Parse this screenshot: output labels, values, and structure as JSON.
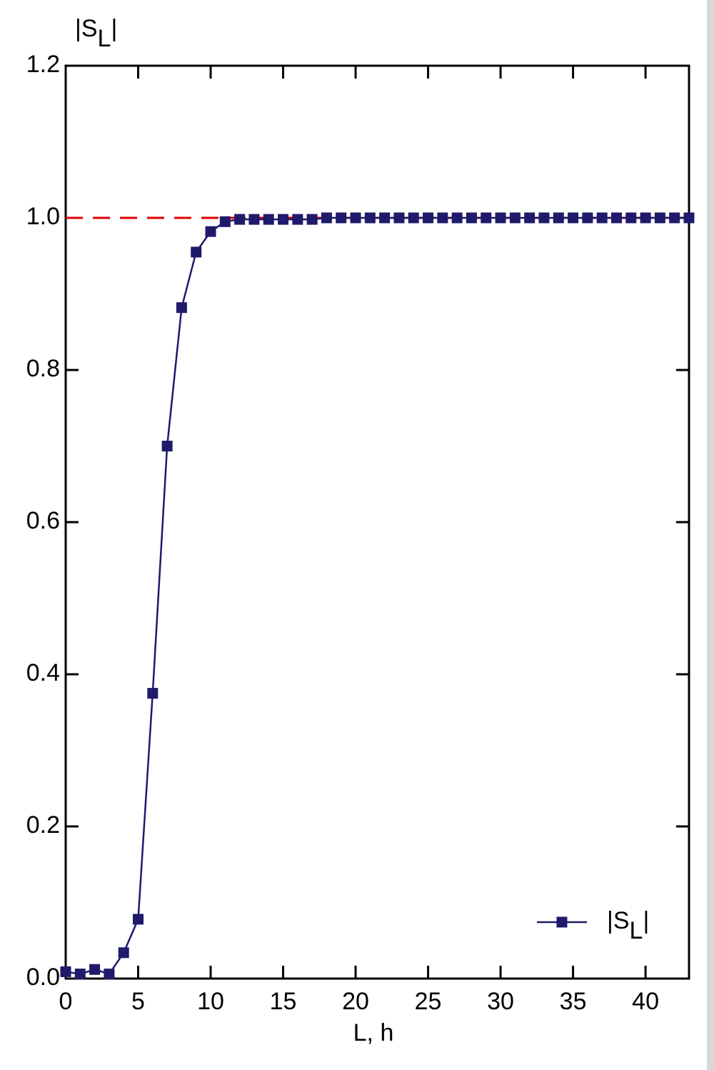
{
  "chart_data": {
    "type": "line",
    "y_label": "|SL|",
    "x_label": "L, h",
    "x": [
      0,
      1,
      2,
      3,
      4,
      5,
      6,
      7,
      8,
      9,
      10,
      11,
      12,
      13,
      14,
      15,
      16,
      17,
      18,
      19,
      20,
      21,
      22,
      23,
      24,
      25,
      26,
      27,
      28,
      29,
      30,
      31,
      32,
      33,
      34,
      35,
      36,
      37,
      38,
      39,
      40,
      41,
      42,
      43
    ],
    "series": [
      {
        "name": "|SL|",
        "color": "#1f1a6b",
        "values": [
          0.009,
          0.006,
          0.012,
          0.006,
          0.034,
          0.078,
          0.375,
          0.7,
          0.882,
          0.955,
          0.982,
          0.995,
          0.998,
          0.998,
          0.998,
          0.998,
          0.998,
          0.998,
          1.0,
          1.0,
          1.0,
          1.0,
          1.0,
          1.0,
          1.0,
          1.0,
          1.0,
          1.0,
          1.0,
          1.0,
          1.0,
          1.0,
          1.0,
          1.0,
          1.0,
          1.0,
          1.0,
          1.0,
          1.0,
          1.0,
          1.0,
          1.0,
          1.0,
          1.0
        ]
      }
    ],
    "reference_line": {
      "y": 1,
      "color": "#e00000"
    },
    "xlim": [
      0,
      43
    ],
    "xticks": [
      0,
      5,
      10,
      15,
      20,
      25,
      30,
      35,
      40
    ],
    "ylim": [
      0,
      1.2
    ],
    "yticks": [
      {
        "value": 0,
        "label": "0.0"
      },
      0.2,
      0.4,
      0.6,
      0.8,
      {
        "value": 1,
        "label": "1.0"
      },
      1.2
    ],
    "legend": "lower right"
  }
}
